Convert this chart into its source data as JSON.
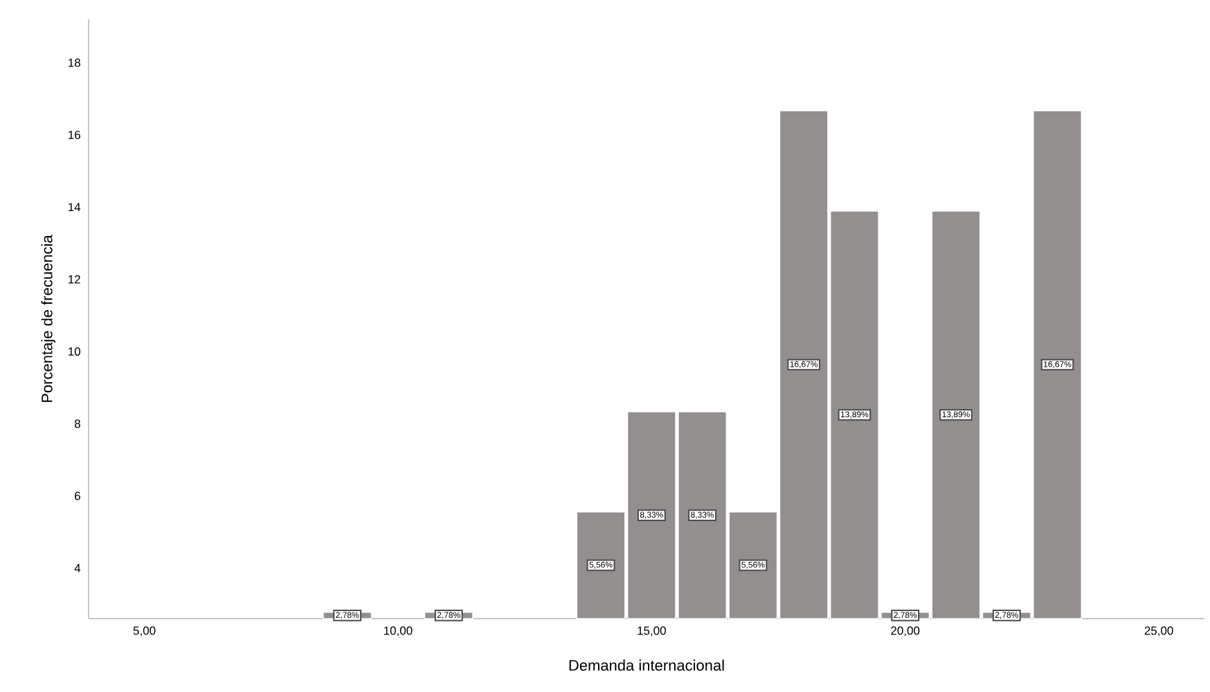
{
  "chart_data": {
    "type": "bar",
    "xlabel": "Demanda internacional",
    "ylabel": "Porcentaje de frecuencia",
    "x": [
      9,
      11,
      14,
      15,
      16,
      17,
      18,
      19,
      20,
      21,
      22,
      23
    ],
    "values": [
      2.78,
      2.78,
      5.56,
      8.33,
      8.33,
      5.56,
      16.67,
      13.89,
      2.78,
      13.89,
      2.78,
      16.67
    ],
    "value_labels": [
      "2,78%",
      "2,78%",
      "5,56%",
      "8,33%",
      "8,33%",
      "5,56%",
      "16,67%",
      "13,89%",
      "2,78%",
      "13,89%",
      "2,78%",
      "16,67%"
    ],
    "color": "#938f8e",
    "xlim": [
      3.9,
      25.9
    ],
    "ylim": [
      2.6,
      19.2
    ],
    "xticks": [
      {
        "value": 5,
        "label": "5,00"
      },
      {
        "value": 10,
        "label": "10,00"
      },
      {
        "value": 15,
        "label": "15,00"
      },
      {
        "value": 20,
        "label": "20,00"
      },
      {
        "value": 25,
        "label": "25,00"
      }
    ],
    "yticks": [
      4,
      6,
      8,
      10,
      12,
      14,
      16,
      18
    ],
    "grid": false
  }
}
